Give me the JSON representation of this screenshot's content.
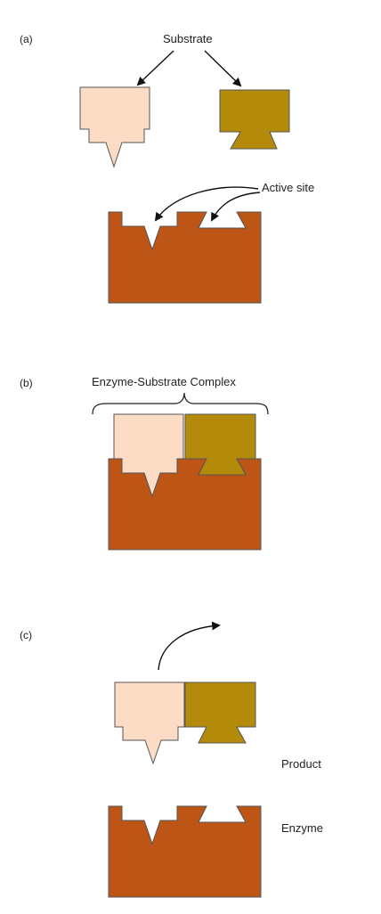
{
  "panels": [
    {
      "letter": "(a)"
    },
    {
      "letter": "(b)"
    },
    {
      "letter": "(c)"
    }
  ],
  "labels": {
    "substrate": "Substrate",
    "active_site": "Active site",
    "complex": "Enzyme-Substrate Complex",
    "product": "Product",
    "enzyme": "Enzyme"
  },
  "colors": {
    "enzyme": "#bc5516",
    "substrate_left": "#fcdcc4",
    "substrate_right": "#b48a0b",
    "outline": "#555555"
  }
}
